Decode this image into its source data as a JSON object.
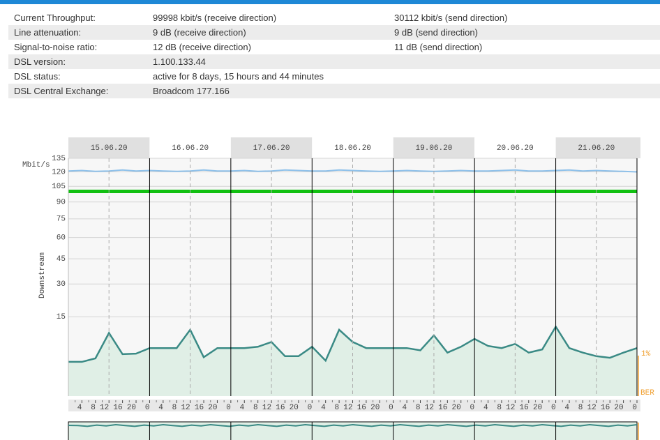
{
  "table": {
    "rows": [
      [
        "Current Throughput:",
        "99998 kbit/s (receive direction)",
        "30112 kbit/s (send direction)"
      ],
      [
        "Line attenuation:",
        "9 dB (receive direction)",
        "9 dB (send direction)"
      ],
      [
        "Signal-to-noise ratio:",
        "12 dB (receive direction)",
        "11 dB (send direction)"
      ],
      [
        "DSL version:",
        "1.100.133.44"
      ],
      [
        "DSL status:",
        "active for 8 days, 15 hours and 44 minutes"
      ],
      [
        "DSL Central Exchange:",
        "Broadcom 177.166"
      ]
    ]
  },
  "chart_data": {
    "type": "line",
    "y_label": "Downstream",
    "y_unit": "Mbit/s",
    "y_scale": "sqrt",
    "categories": [
      "15.06.20",
      "16.06.20",
      "17.06.20",
      "18.06.20",
      "19.06.20",
      "20.06.20",
      "21.06.20"
    ],
    "ylim": [
      0,
      135
    ],
    "yticks": [
      15,
      30,
      45,
      60,
      75,
      90,
      105,
      120,
      135
    ],
    "grid": true,
    "xlim": [
      0,
      168
    ],
    "xticks": [
      4,
      8,
      12,
      16,
      20,
      {
        "value": 24,
        "label": "0"
      },
      {
        "value": 28,
        "label": "4"
      },
      {
        "value": 32,
        "label": "8"
      },
      {
        "value": 36,
        "label": "12"
      },
      {
        "value": 40,
        "label": "16"
      },
      {
        "value": 44,
        "label": "20"
      },
      {
        "value": 48,
        "label": "0"
      },
      {
        "value": 52,
        "label": "4"
      },
      {
        "value": 56,
        "label": "8"
      },
      {
        "value": 60,
        "label": "12"
      },
      {
        "value": 64,
        "label": "16"
      },
      {
        "value": 68,
        "label": "20"
      },
      {
        "value": 72,
        "label": "0"
      },
      {
        "value": 76,
        "label": "4"
      },
      {
        "value": 80,
        "label": "8"
      },
      {
        "value": 84,
        "label": "12"
      },
      {
        "value": 88,
        "label": "16"
      },
      {
        "value": 92,
        "label": "20"
      },
      {
        "value": 96,
        "label": "0"
      },
      {
        "value": 100,
        "label": "4"
      },
      {
        "value": 104,
        "label": "8"
      },
      {
        "value": 108,
        "label": "12"
      },
      {
        "value": 112,
        "label": "16"
      },
      {
        "value": 116,
        "label": "20"
      },
      {
        "value": 120,
        "label": "0"
      },
      {
        "value": 124,
        "label": "4"
      },
      {
        "value": 128,
        "label": "8"
      },
      {
        "value": 132,
        "label": "12"
      },
      {
        "value": 136,
        "label": "16"
      },
      {
        "value": 140,
        "label": "20"
      },
      {
        "value": 144,
        "label": "0"
      },
      {
        "value": 148,
        "label": "4"
      },
      {
        "value": 152,
        "label": "8"
      },
      {
        "value": 156,
        "label": "12"
      },
      {
        "value": 160,
        "label": "16"
      },
      {
        "value": 164,
        "label": "20"
      },
      {
        "value": 168,
        "label": "0"
      }
    ],
    "x": [
      0,
      4,
      8,
      12,
      16,
      20,
      24,
      28,
      32,
      36,
      40,
      44,
      48,
      52,
      56,
      60,
      64,
      68,
      72,
      76,
      80,
      84,
      88,
      92,
      96,
      100,
      104,
      108,
      112,
      116,
      120,
      124,
      128,
      132,
      136,
      140,
      144,
      148,
      152,
      156,
      160,
      164,
      168
    ],
    "series": [
      {
        "color": "#8fc1ea",
        "values": [
          121,
          121.5,
          120.5,
          121,
          122,
          121,
          121.5,
          121,
          120.5,
          121,
          122,
          121,
          121,
          121.5,
          120.5,
          121,
          122,
          121.5,
          121,
          121,
          122,
          121.5,
          121,
          120.5,
          121,
          121.5,
          121,
          120.5,
          121,
          121.5,
          121,
          121,
          121.5,
          122,
          121,
          121,
          121.5,
          122,
          121,
          121.5,
          121,
          120.5,
          120
        ]
      },
      {
        "color": "#11c011",
        "values": [
          100,
          100,
          100,
          100,
          100,
          100,
          100,
          100,
          100,
          100,
          100,
          100,
          100,
          100,
          100,
          100,
          100,
          100,
          100,
          100,
          100,
          100,
          100,
          100,
          100,
          100,
          100,
          100,
          100,
          100,
          100,
          100,
          100,
          100,
          100,
          100,
          100,
          100,
          100,
          100,
          100,
          100,
          100
        ]
      },
      {
        "color": "#3a8a85",
        "fill": "#e0efe6",
        "values": [
          2.8,
          2.8,
          3.4,
          9.5,
          4.2,
          4.3,
          5.5,
          5.5,
          5.5,
          10.5,
          3.6,
          5.5,
          5.5,
          5.5,
          5.8,
          7.0,
          3.8,
          3.8,
          5.8,
          3.0,
          10.5,
          7.0,
          5.5,
          5.5,
          5.5,
          5.5,
          5.0,
          8.8,
          4.5,
          5.8,
          7.8,
          6.0,
          5.5,
          6.5,
          4.5,
          5.2,
          11.5,
          5.5,
          4.5,
          3.8,
          3.5,
          4.5,
          5.5
        ]
      }
    ],
    "right_labels": [
      "1%",
      "BER"
    ]
  }
}
